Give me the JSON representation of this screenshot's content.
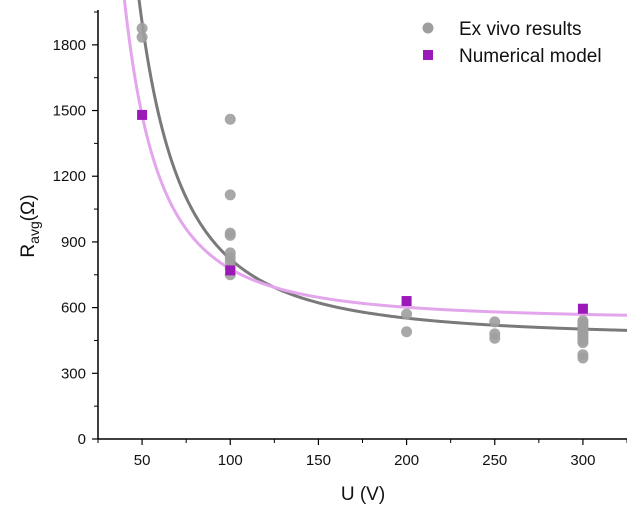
{
  "chart_data": {
    "type": "scatter",
    "xlabel": "U (V)",
    "ylabel": {
      "main": "R",
      "sub": "avg",
      "unit": "(Ω)"
    },
    "xlim": [
      25,
      325
    ],
    "ylim": [
      0,
      1950
    ],
    "xticks": [
      50,
      100,
      150,
      200,
      250,
      300
    ],
    "yticks": [
      0,
      300,
      600,
      900,
      1200,
      1500,
      1800
    ],
    "legend_position": "top-right",
    "grid": false,
    "series": [
      {
        "name": "Ex vivo results",
        "marker": "circle",
        "color": "#9e9e9e",
        "points": [
          [
            50,
            1875
          ],
          [
            50,
            1835
          ],
          [
            100,
            1460
          ],
          [
            100,
            1115
          ],
          [
            100,
            940
          ],
          [
            100,
            930
          ],
          [
            100,
            850
          ],
          [
            100,
            830
          ],
          [
            100,
            810
          ],
          [
            100,
            780
          ],
          [
            100,
            750
          ],
          [
            200,
            570
          ],
          [
            200,
            490
          ],
          [
            250,
            535
          ],
          [
            250,
            480
          ],
          [
            250,
            460
          ],
          [
            300,
            540
          ],
          [
            300,
            530
          ],
          [
            300,
            520
          ],
          [
            300,
            510
          ],
          [
            300,
            500
          ],
          [
            300,
            490
          ],
          [
            300,
            480
          ],
          [
            300,
            470
          ],
          [
            300,
            460
          ],
          [
            300,
            450
          ],
          [
            300,
            440
          ],
          [
            300,
            385
          ],
          [
            300,
            370
          ]
        ]
      },
      {
        "name": "Numerical model",
        "marker": "square",
        "color": "#9b19b8",
        "points": [
          [
            50,
            1480
          ],
          [
            100,
            770
          ],
          [
            200,
            630
          ],
          [
            300,
            595
          ]
        ]
      }
    ],
    "fits": [
      {
        "series": "Ex vivo results",
        "model": "A + B/U^2",
        "A": 462,
        "B": 3600000,
        "color": "#7a7a7a"
      },
      {
        "series": "Numerical model",
        "model": "A + B/U^2",
        "A": 543,
        "B": 2340000,
        "color": "#e3a6ec"
      }
    ]
  }
}
